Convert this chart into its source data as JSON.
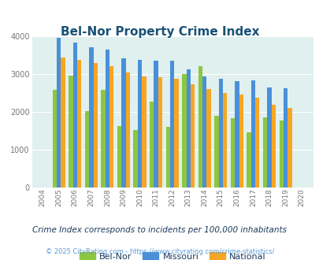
{
  "title": "Bel-Nor Property Crime Index",
  "years": [
    "2004",
    "2005",
    "2006",
    "2007",
    "2008",
    "2009",
    "2010",
    "2011",
    "2012",
    "2013",
    "2014",
    "2015",
    "2016",
    "2017",
    "2018",
    "2019",
    "2020"
  ],
  "belnor": [
    0,
    2580,
    2950,
    2020,
    2590,
    1630,
    1520,
    2280,
    1600,
    3000,
    3220,
    1900,
    1830,
    1460,
    1850,
    1760,
    0
  ],
  "missouri": [
    0,
    3960,
    3840,
    3720,
    3640,
    3410,
    3370,
    3360,
    3360,
    3130,
    2940,
    2870,
    2810,
    2840,
    2640,
    2620,
    0
  ],
  "national": [
    0,
    3450,
    3370,
    3300,
    3220,
    3040,
    2940,
    2920,
    2880,
    2720,
    2600,
    2500,
    2450,
    2380,
    2180,
    2110,
    0
  ],
  "belnor_color": "#8dc63f",
  "missouri_color": "#4a90d9",
  "national_color": "#f5a623",
  "bg_color": "#dff0ee",
  "ylim": [
    0,
    4000
  ],
  "yticks": [
    0,
    1000,
    2000,
    3000,
    4000
  ],
  "subtitle": "Crime Index corresponds to incidents per 100,000 inhabitants",
  "footer": "© 2025 CityRating.com - https://www.cityrating.com/crime-statistics/",
  "title_color": "#1a5276",
  "subtitle_color": "#1a3a5c",
  "footer_color": "#5b9bd5",
  "legend_label_color": "#1a3a5c"
}
